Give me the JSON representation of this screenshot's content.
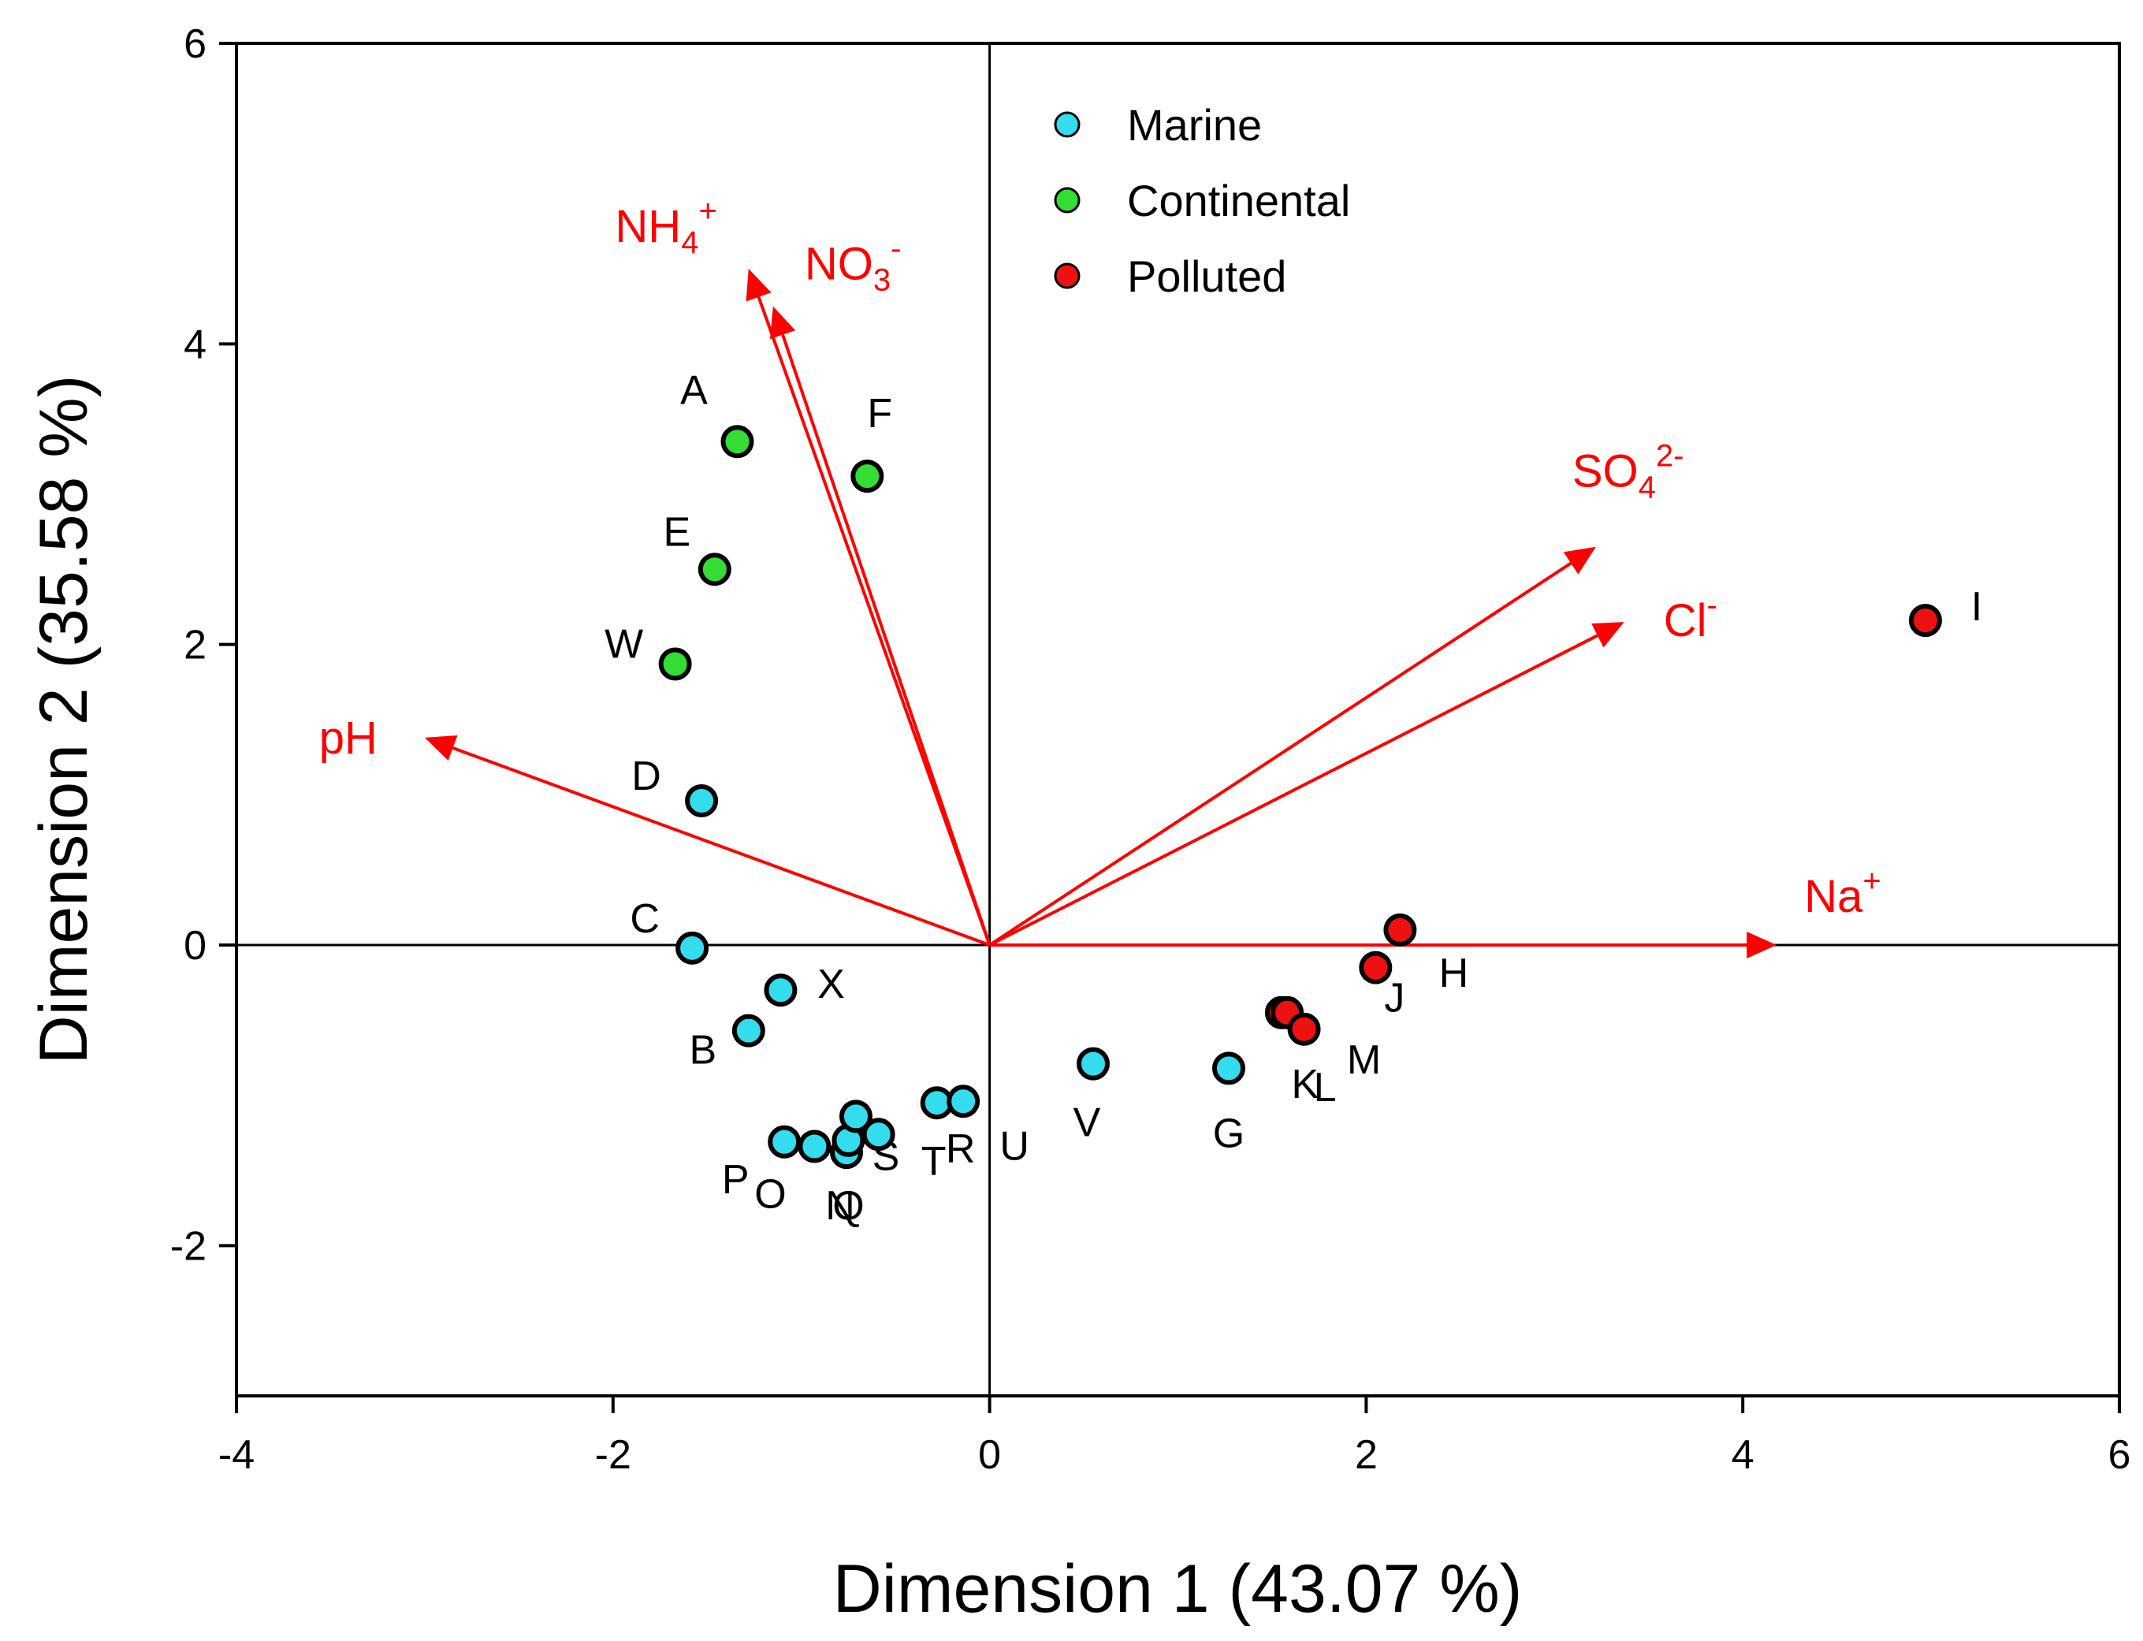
{
  "chart_data": {
    "type": "scatter",
    "title": "",
    "xlabel": "Dimension 1 (43.07 %)",
    "ylabel": "Dimension 2 (35.58 %)",
    "xlim": [
      -4,
      6
    ],
    "ylim": [
      -3,
      6
    ],
    "xticks": [
      -4,
      -2,
      0,
      2,
      4,
      6
    ],
    "yticks": [
      -2,
      0,
      2,
      4,
      6
    ],
    "xtick_labels": [
      "-4",
      "-2",
      "0",
      "2",
      "4",
      "6"
    ],
    "ytick_labels": [
      "-2",
      "0",
      "2",
      "4",
      "6"
    ],
    "grid": false,
    "legend_position": "top",
    "colors": {
      "Marine": "#33ddee",
      "Continental": "#33dd33",
      "Polluted": "#ee1111",
      "vectors": "#ff0000"
    },
    "series": [
      {
        "name": "Marine",
        "points": [
          {
            "label": "D",
            "x": -1.53,
            "y": 0.96
          },
          {
            "label": "C",
            "x": -1.58,
            "y": -0.02
          },
          {
            "label": "X",
            "x": -1.11,
            "y": -0.3
          },
          {
            "label": "B",
            "x": -1.28,
            "y": -0.57
          },
          {
            "label": "P",
            "x": -1.09,
            "y": -1.31
          },
          {
            "label": "O",
            "x": -0.93,
            "y": -1.34
          },
          {
            "label": "N",
            "x": -0.76,
            "y": -1.38
          },
          {
            "label": "Q",
            "x": -0.75,
            "y": -1.3
          },
          {
            "label": "S",
            "x": -0.71,
            "y": -1.14
          },
          {
            "label": "T",
            "x": -0.59,
            "y": -1.26
          },
          {
            "label": "R",
            "x": -0.28,
            "y": -1.05
          },
          {
            "label": "U",
            "x": -0.14,
            "y": -1.04
          },
          {
            "label": "V",
            "x": 0.55,
            "y": -0.79
          },
          {
            "label": "G",
            "x": 1.27,
            "y": -0.82
          }
        ]
      },
      {
        "name": "Continental",
        "points": [
          {
            "label": "A",
            "x": -1.34,
            "y": 3.35
          },
          {
            "label": "F",
            "x": -0.65,
            "y": 3.12
          },
          {
            "label": "E",
            "x": -1.46,
            "y": 2.5
          },
          {
            "label": "W",
            "x": -1.67,
            "y": 1.87
          }
        ]
      },
      {
        "name": "Polluted",
        "points": [
          {
            "label": "I",
            "x": 4.97,
            "y": 2.16
          },
          {
            "label": "H",
            "x": 2.18,
            "y": 0.1
          },
          {
            "label": "J",
            "x": 2.05,
            "y": -0.15
          },
          {
            "label": "K",
            "x": 1.55,
            "y": -0.45
          },
          {
            "label": "L",
            "x": 1.58,
            "y": -0.45
          },
          {
            "label": "M",
            "x": 1.67,
            "y": -0.56
          }
        ]
      }
    ],
    "vectors": [
      {
        "base": "NH",
        "sub": "4",
        "sup": "+",
        "x": -1.28,
        "y": 4.5
      },
      {
        "base": "NO",
        "sub": "3",
        "sup": "-",
        "x": -1.15,
        "y": 4.25
      },
      {
        "base": "SO",
        "sub": "4",
        "sup": "2-",
        "x": 3.22,
        "y": 2.65
      },
      {
        "base": "Cl",
        "sub": "",
        "sup": "-",
        "x": 3.37,
        "y": 2.15
      },
      {
        "base": "pH",
        "sub": "",
        "sup": "",
        "x": -3.0,
        "y": 1.38
      },
      {
        "base": "Na",
        "sub": "",
        "sup": "+",
        "x": 4.18,
        "y": 0.0
      }
    ]
  }
}
